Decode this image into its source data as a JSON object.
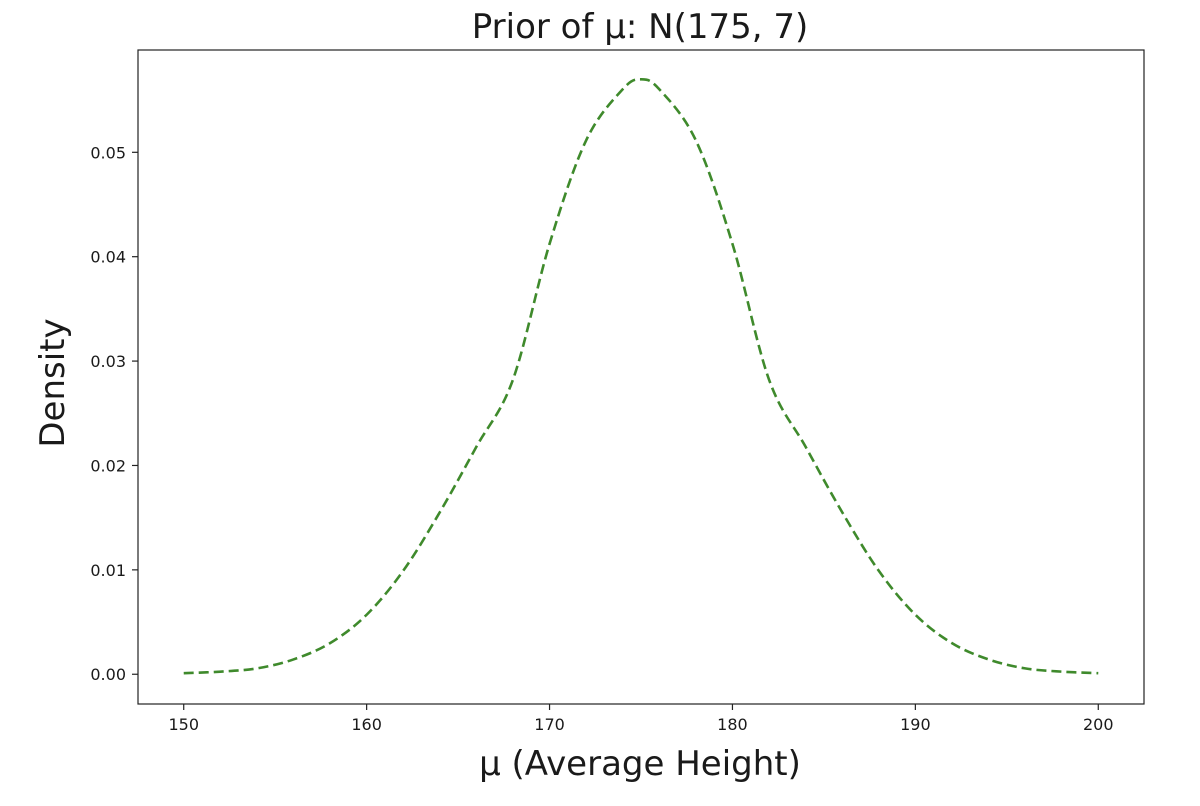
{
  "chart_data": {
    "type": "line",
    "title": "Prior of μ: N(175, 7)",
    "xlabel": "μ (Average Height)",
    "ylabel": "Density",
    "xlim": [
      147.5,
      202.5
    ],
    "ylim": [
      -0.00285,
      0.0598
    ],
    "x_ticks": [
      150,
      160,
      170,
      180,
      190,
      200
    ],
    "x_tick_labels": [
      "150",
      "160",
      "170",
      "180",
      "190",
      "200"
    ],
    "y_ticks": [
      0.0,
      0.01,
      0.02,
      0.03,
      0.04,
      0.05
    ],
    "y_tick_labels": [
      "0.00",
      "0.01",
      "0.02",
      "0.03",
      "0.04",
      "0.05"
    ],
    "grid": false,
    "series": [
      {
        "color": "#3f8a2c",
        "line_style": "dashed",
        "x": [
          150,
          152,
          154,
          156,
          158,
          160,
          162,
          164,
          166,
          168,
          170,
          172,
          174,
          175,
          176,
          178,
          180,
          182,
          184,
          186,
          188,
          190,
          192,
          194,
          196,
          198,
          200
        ],
        "y": [
          0.0001,
          0.00025,
          0.00056,
          0.00142,
          0.00298,
          0.0057,
          0.00991,
          0.01552,
          0.02179,
          0.02822,
          0.04123,
          0.05114,
          0.05604,
          0.05699,
          0.05604,
          0.05114,
          0.04123,
          0.02822,
          0.02179,
          0.01552,
          0.00991,
          0.0057,
          0.00298,
          0.00142,
          0.00056,
          0.00025,
          0.0001
        ]
      }
    ]
  }
}
